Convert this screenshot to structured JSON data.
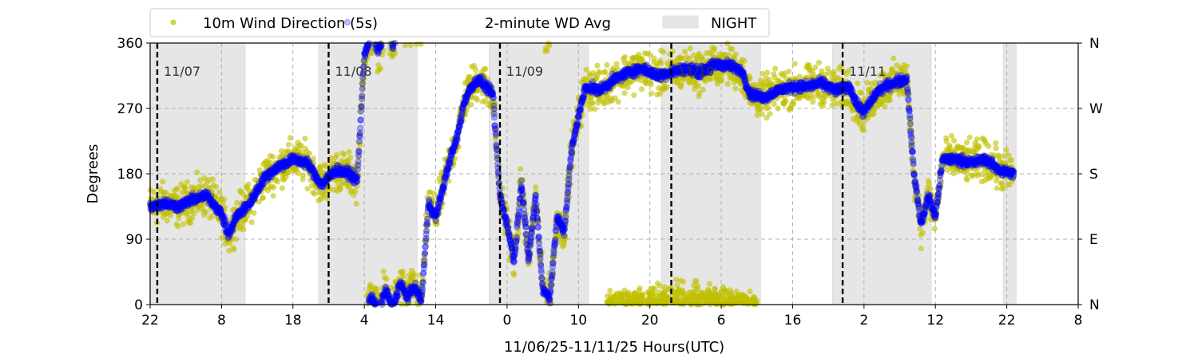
{
  "chart_data": {
    "type": "scatter",
    "title": "",
    "xlabel": "11/06/25-11/11/25  Hours(UTC)",
    "ylabel": "Degrees",
    "xlim_hours": [
      22,
      152
    ],
    "ylim": [
      0,
      360
    ],
    "x_tick_hours": [
      22,
      32,
      42,
      52,
      62,
      72,
      82,
      92,
      102,
      112,
      122,
      132,
      142,
      152
    ],
    "x_tick_labels": [
      "22",
      "8",
      "18",
      "4",
      "14",
      "0",
      "10",
      "20",
      "6",
      "16",
      "2",
      "12",
      "22",
      "8"
    ],
    "y_ticks": [
      0,
      90,
      180,
      270,
      360
    ],
    "y_tick_labels": [
      "0",
      "90",
      "180",
      "270",
      "360"
    ],
    "y2_tick_labels": [
      "N",
      "E",
      "S",
      "W",
      "N"
    ],
    "grid": true,
    "legend": {
      "placement": "top-center",
      "entries": [
        "10m Wind Direction (5s)",
        "2-minute WD Avg",
        "NIGHT"
      ]
    },
    "colors": {
      "wd5s": "#bfbf00",
      "wdavg": "#0000ff",
      "night": "#e6e6e6"
    },
    "day_markers": [
      {
        "hour": 23,
        "label": "11/07"
      },
      {
        "hour": 47,
        "label": "11/08"
      },
      {
        "hour": 71,
        "label": "11/09"
      },
      {
        "hour": 95,
        "label": "11/10"
      },
      {
        "hour": 119,
        "label": "11/11"
      }
    ],
    "night_spans_hours": [
      [
        22,
        35.3
      ],
      [
        45.6,
        59.4
      ],
      [
        69.5,
        83.4
      ],
      [
        93.6,
        107.5
      ],
      [
        117.6,
        131.4
      ],
      [
        141.5,
        143.3
      ]
    ],
    "series": [
      {
        "name": "2-minute WD Avg",
        "x_hours": [
          22,
          24,
          26,
          28,
          30,
          32,
          33,
          34,
          36,
          38,
          40,
          42,
          44,
          45,
          46,
          48,
          50,
          51,
          52,
          53,
          54,
          55,
          56,
          57,
          58,
          59,
          60,
          61,
          62,
          63,
          64,
          65,
          66,
          67,
          68,
          69,
          70,
          71,
          72,
          73,
          74,
          75,
          76,
          77,
          78,
          79,
          80,
          81,
          82,
          83,
          85,
          87,
          89,
          91,
          93,
          95,
          97,
          99,
          101,
          103,
          105,
          106,
          108,
          110,
          112,
          114,
          116,
          118,
          120,
          121,
          122,
          124,
          126,
          128,
          129,
          130,
          131,
          132,
          133,
          135,
          137,
          139,
          141,
          143
        ],
        "values": [
          135,
          140,
          135,
          145,
          150,
          125,
          95,
          120,
          140,
          175,
          190,
          200,
          195,
          180,
          165,
          185,
          180,
          170,
          345,
          10,
          350,
          20,
          355,
          30,
          10,
          25,
          5,
          140,
          120,
          160,
          200,
          230,
          280,
          300,
          310,
          300,
          290,
          150,
          110,
          60,
          170,
          60,
          150,
          20,
          10,
          120,
          100,
          210,
          260,
          300,
          295,
          310,
          320,
          325,
          315,
          320,
          325,
          320,
          330,
          330,
          320,
          290,
          285,
          295,
          300,
          300,
          305,
          295,
          300,
          275,
          265,
          295,
          305,
          310,
          180,
          110,
          150,
          120,
          200,
          200,
          195,
          200,
          185,
          180
        ]
      },
      {
        "name": "10m Wind Direction (5s)",
        "follows": "2-minute WD Avg",
        "spread_deg": 40,
        "low_cluster": {
          "x_range_hours": [
            86,
            107
          ],
          "y_range": [
            0,
            40
          ]
        }
      }
    ]
  }
}
